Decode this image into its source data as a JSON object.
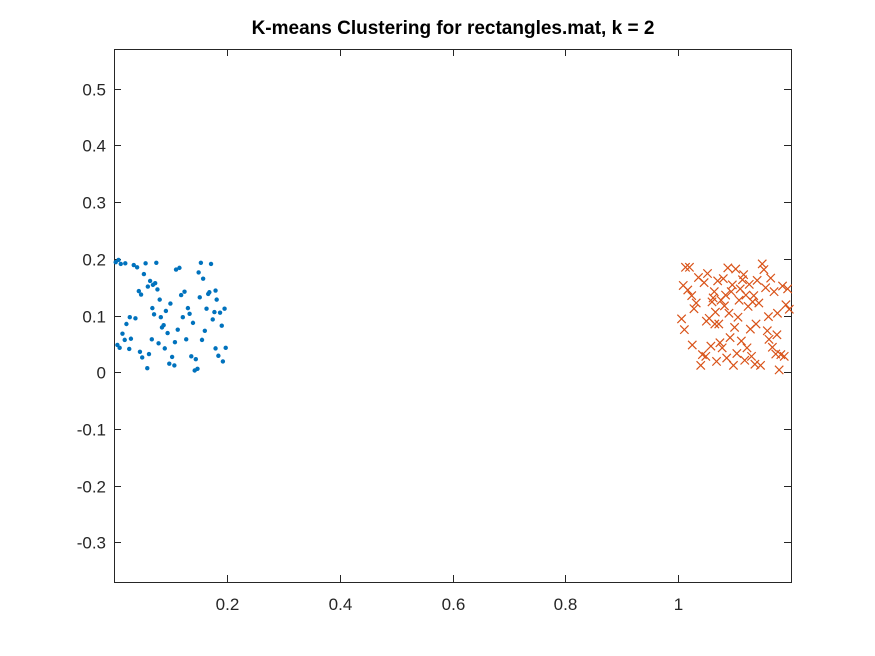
{
  "chart_data": {
    "type": "scatter",
    "title": "K-means Clustering for rectangles.mat, k = 2",
    "xlabel": "",
    "ylabel": "",
    "xlim": [
      0,
      1.2
    ],
    "ylim": [
      -0.37,
      0.57
    ],
    "x_ticks": [
      {
        "value": 0.2,
        "label": "0.2"
      },
      {
        "value": 0.4,
        "label": "0.4"
      },
      {
        "value": 0.6,
        "label": "0.6"
      },
      {
        "value": 0.8,
        "label": "0.8"
      },
      {
        "value": 1.0,
        "label": "1"
      }
    ],
    "y_ticks": [
      {
        "value": 0.5,
        "label": "0.5"
      },
      {
        "value": 0.4,
        "label": "0.4"
      },
      {
        "value": 0.3,
        "label": "0.3"
      },
      {
        "value": 0.2,
        "label": "0.2"
      },
      {
        "value": 0.1,
        "label": "0.1"
      },
      {
        "value": 0.0,
        "label": "0"
      },
      {
        "value": -0.1,
        "label": "-0.1"
      },
      {
        "value": -0.2,
        "label": "-0.2"
      },
      {
        "value": -0.3,
        "label": "-0.3"
      }
    ],
    "grid": false,
    "legend": false,
    "series": [
      {
        "marker": "dot",
        "color": "#0072BD",
        "points": [
          [
            0.003,
            0.194
          ],
          [
            0.006,
            0.048
          ],
          [
            0.008,
            0.198
          ],
          [
            0.01,
            0.043
          ],
          [
            0.012,
            0.191
          ],
          [
            0.015,
            0.068
          ],
          [
            0.019,
            0.057
          ],
          [
            0.022,
            0.085
          ],
          [
            0.027,
            0.041
          ],
          [
            0.03,
            0.059
          ],
          [
            0.035,
            0.189
          ],
          [
            0.038,
            0.095
          ],
          [
            0.041,
            0.185
          ],
          [
            0.044,
            0.143
          ],
          [
            0.048,
            0.137
          ],
          [
            0.05,
            0.026
          ],
          [
            0.053,
            0.173
          ],
          [
            0.056,
            0.192
          ],
          [
            0.059,
            0.007
          ],
          [
            0.062,
            0.032
          ],
          [
            0.064,
            0.161
          ],
          [
            0.067,
            0.058
          ],
          [
            0.069,
            0.154
          ],
          [
            0.071,
            0.102
          ],
          [
            0.073,
            0.157
          ],
          [
            0.075,
            0.193
          ],
          [
            0.077,
            0.146
          ],
          [
            0.079,
            0.051
          ],
          [
            0.081,
            0.128
          ],
          [
            0.083,
            0.097
          ],
          [
            0.085,
            0.079
          ],
          [
            0.088,
            0.083
          ],
          [
            0.09,
            0.042
          ],
          [
            0.092,
            0.108
          ],
          [
            0.095,
            0.069
          ],
          [
            0.098,
            0.015
          ],
          [
            0.1,
            0.121
          ],
          [
            0.103,
            0.027
          ],
          [
            0.107,
            0.012
          ],
          [
            0.11,
            0.181
          ],
          [
            0.113,
            0.075
          ],
          [
            0.116,
            0.184
          ],
          [
            0.119,
            0.136
          ],
          [
            0.122,
            0.097
          ],
          [
            0.125,
            0.142
          ],
          [
            0.128,
            0.058
          ],
          [
            0.131,
            0.113
          ],
          [
            0.134,
            0.103
          ],
          [
            0.137,
            0.028
          ],
          [
            0.14,
            0.087
          ],
          [
            0.143,
            0.003
          ],
          [
            0.145,
            0.023
          ],
          [
            0.148,
            0.006
          ],
          [
            0.15,
            0.176
          ],
          [
            0.152,
            0.132
          ],
          [
            0.154,
            0.193
          ],
          [
            0.156,
            0.057
          ],
          [
            0.158,
            0.165
          ],
          [
            0.161,
            0.073
          ],
          [
            0.164,
            0.112
          ],
          [
            0.167,
            0.138
          ],
          [
            0.169,
            0.141
          ],
          [
            0.172,
            0.191
          ],
          [
            0.175,
            0.093
          ],
          [
            0.178,
            0.106
          ],
          [
            0.18,
            0.144
          ],
          [
            0.182,
            0.128
          ],
          [
            0.185,
            0.029
          ],
          [
            0.188,
            0.105
          ],
          [
            0.191,
            0.082
          ],
          [
            0.193,
            0.019
          ],
          [
            0.196,
            0.112
          ],
          [
            0.198,
            0.043
          ],
          [
            0.02,
            0.192
          ],
          [
            0.06,
            0.151
          ],
          [
            0.068,
            0.113
          ],
          [
            0.028,
            0.097
          ],
          [
            0.108,
            0.053
          ],
          [
            0.046,
            0.036
          ],
          [
            0.18,
            0.042
          ]
        ]
      },
      {
        "marker": "x",
        "color": "#D95319",
        "points": [
          [
            1.006,
            0.094
          ],
          [
            1.009,
            0.153
          ],
          [
            1.011,
            0.075
          ],
          [
            1.013,
            0.185
          ],
          [
            1.017,
            0.145
          ],
          [
            1.02,
            0.185
          ],
          [
            1.024,
            0.135
          ],
          [
            1.028,
            0.112
          ],
          [
            1.032,
            0.122
          ],
          [
            1.036,
            0.167
          ],
          [
            1.04,
            0.012
          ],
          [
            1.043,
            0.031
          ],
          [
            1.046,
            0.158
          ],
          [
            1.049,
            0.028
          ],
          [
            1.052,
            0.174
          ],
          [
            1.055,
            0.095
          ],
          [
            1.058,
            0.046
          ],
          [
            1.06,
            0.124
          ],
          [
            1.062,
            0.131
          ],
          [
            1.064,
            0.142
          ],
          [
            1.066,
            0.106
          ],
          [
            1.068,
            0.019
          ],
          [
            1.07,
            0.161
          ],
          [
            1.072,
            0.085
          ],
          [
            1.074,
            0.052
          ],
          [
            1.076,
            0.127
          ],
          [
            1.078,
            0.043
          ],
          [
            1.08,
            0.165
          ],
          [
            1.082,
            0.117
          ],
          [
            1.084,
            0.136
          ],
          [
            1.086,
            0.025
          ],
          [
            1.088,
            0.184
          ],
          [
            1.09,
            0.104
          ],
          [
            1.092,
            0.061
          ],
          [
            1.094,
            0.142
          ],
          [
            1.096,
            0.154
          ],
          [
            1.098,
            0.012
          ],
          [
            1.1,
            0.079
          ],
          [
            1.102,
            0.182
          ],
          [
            1.104,
            0.033
          ],
          [
            1.106,
            0.097
          ],
          [
            1.108,
            0.127
          ],
          [
            1.11,
            0.147
          ],
          [
            1.112,
            0.055
          ],
          [
            1.114,
            0.163
          ],
          [
            1.116,
            0.172
          ],
          [
            1.118,
            0.021
          ],
          [
            1.12,
            0.136
          ],
          [
            1.122,
            0.043
          ],
          [
            1.124,
            0.116
          ],
          [
            1.126,
            0.155
          ],
          [
            1.128,
            0.076
          ],
          [
            1.13,
            0.028
          ],
          [
            1.132,
            0.124
          ],
          [
            1.134,
            0.135
          ],
          [
            1.136,
            0.014
          ],
          [
            1.138,
            0.085
          ],
          [
            1.14,
            0.162
          ],
          [
            1.143,
            0.122
          ],
          [
            1.146,
            0.012
          ],
          [
            1.149,
            0.191
          ],
          [
            1.152,
            0.181
          ],
          [
            1.155,
            0.149
          ],
          [
            1.158,
            0.073
          ],
          [
            1.161,
            0.058
          ],
          [
            1.164,
            0.166
          ],
          [
            1.167,
            0.044
          ],
          [
            1.17,
            0.142
          ],
          [
            1.173,
            0.032
          ],
          [
            1.176,
            0.104
          ],
          [
            1.179,
            0.004
          ],
          [
            1.182,
            0.031
          ],
          [
            1.185,
            0.152
          ],
          [
            1.188,
            0.028
          ],
          [
            1.191,
            0.119
          ],
          [
            1.194,
            0.147
          ],
          [
            1.197,
            0.111
          ],
          [
            1.05,
            0.09
          ],
          [
            1.065,
            0.085
          ],
          [
            1.16,
            0.098
          ],
          [
            1.025,
            0.048
          ],
          [
            1.175,
            0.066
          ]
        ]
      }
    ]
  }
}
